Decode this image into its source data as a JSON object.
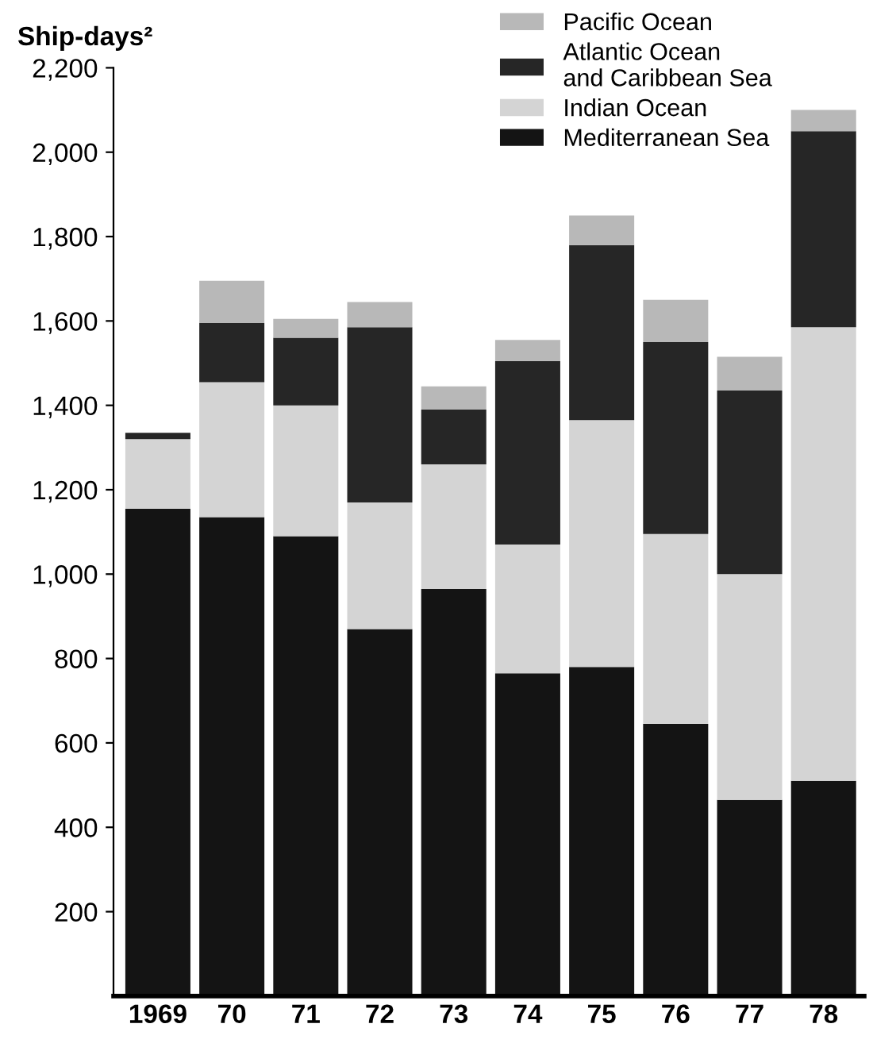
{
  "chart_data": {
    "type": "bar",
    "stacked": true,
    "ylabel": "Ship-days²",
    "categories": [
      "1969",
      "70",
      "71",
      "72",
      "73",
      "74",
      "75",
      "76",
      "77",
      "78"
    ],
    "series": [
      {
        "name": "Mediterranean Sea",
        "color": "#141414",
        "values": [
          1155,
          1135,
          1090,
          870,
          965,
          765,
          780,
          645,
          465,
          510
        ]
      },
      {
        "name": "Indian Ocean",
        "color": "#d4d4d4",
        "values": [
          165,
          320,
          310,
          300,
          295,
          305,
          585,
          450,
          535,
          1075
        ]
      },
      {
        "name": "Atlantic Ocean\nand Caribbean Sea",
        "color": "#262626",
        "values": [
          15,
          140,
          160,
          415,
          130,
          435,
          415,
          455,
          435,
          465
        ]
      },
      {
        "name": "Pacific Ocean",
        "color": "#b8b8b8",
        "values": [
          0,
          100,
          45,
          60,
          55,
          50,
          70,
          100,
          80,
          50
        ]
      }
    ],
    "ylim": [
      0,
      2200
    ],
    "yticks": [
      {
        "value": 200,
        "label": "200"
      },
      {
        "value": 400,
        "label": "400"
      },
      {
        "value": 600,
        "label": "600"
      },
      {
        "value": 800,
        "label": "800"
      },
      {
        "value": 1000,
        "label": "1,000"
      },
      {
        "value": 1200,
        "label": "1,200"
      },
      {
        "value": 1400,
        "label": "1,400"
      },
      {
        "value": 1600,
        "label": "1,600"
      },
      {
        "value": 1800,
        "label": "1,800"
      },
      {
        "value": 2000,
        "label": "2,000"
      },
      {
        "value": 2200,
        "label": "2,200"
      }
    ],
    "grid": false,
    "legend": "top right"
  }
}
